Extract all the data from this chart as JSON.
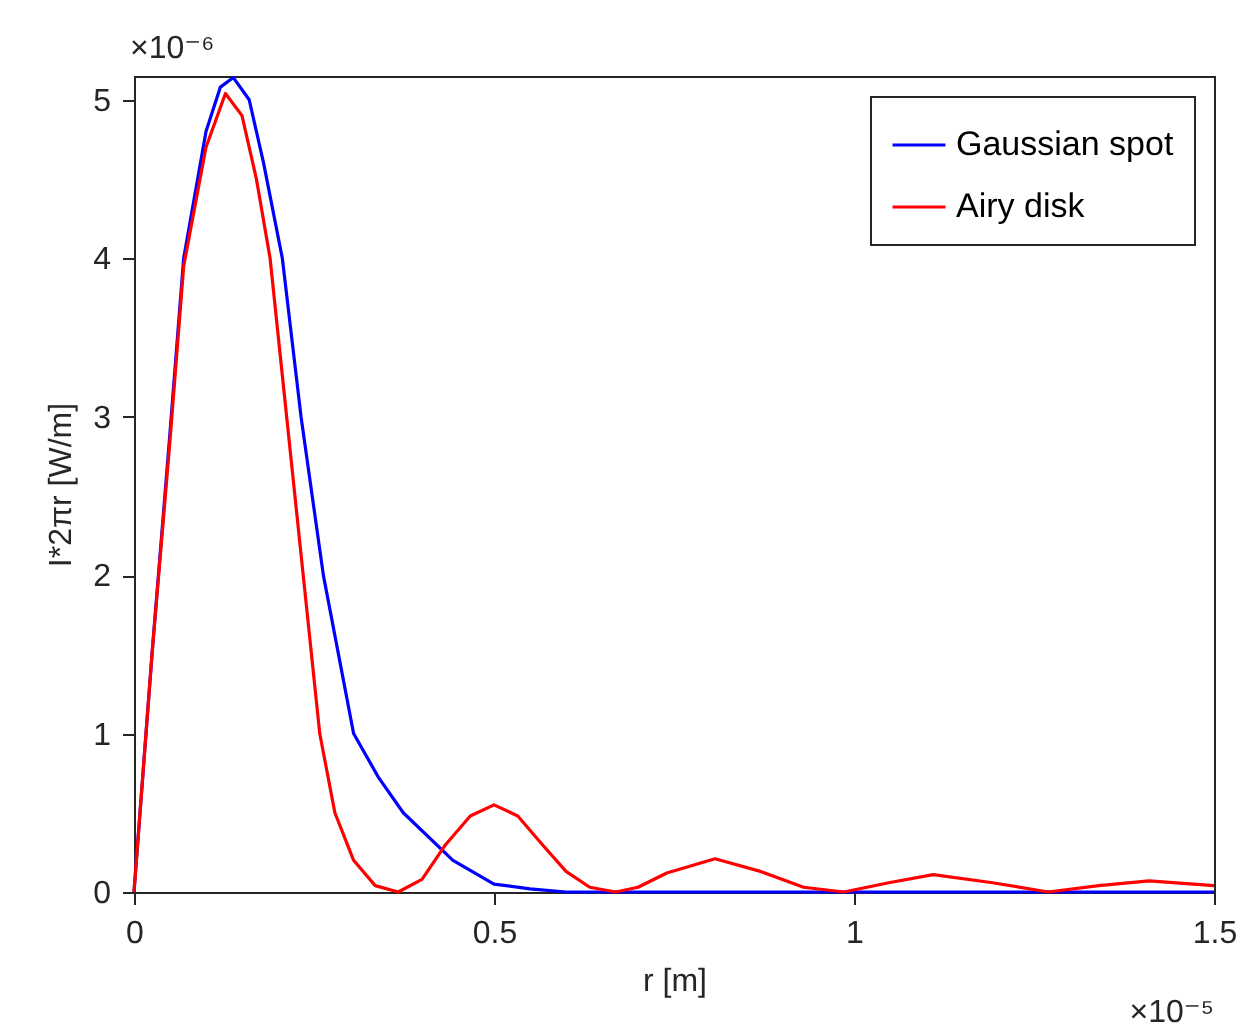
{
  "chart_data": {
    "type": "line",
    "xlabel": "r [m]",
    "ylabel": "I*2πr [W/m]",
    "annotations": [
      "×10⁻⁶",
      "×10⁻⁵"
    ],
    "xlim": [
      0,
      1.5
    ],
    "ylim": [
      0,
      5.15
    ],
    "xticks": [
      0,
      0.5,
      1,
      1.5
    ],
    "yticks": [
      0,
      1,
      2,
      3,
      4,
      5
    ],
    "grid": false,
    "legend": "top right",
    "line_style": "solid",
    "marker": "none",
    "series": [
      {
        "name": "Gaussian spot",
        "color": "#0000ff",
        "x": [
          0,
          0.025,
          0.05,
          0.069,
          0.1,
          0.12,
          0.138,
          0.16,
          0.18,
          0.206,
          0.232,
          0.263,
          0.305,
          0.34,
          0.374,
          0.443,
          0.5,
          0.55,
          0.6,
          1.5
        ],
        "values": [
          0,
          1.5,
          2.9,
          4,
          4.8,
          5.08,
          5.14,
          5.0,
          4.6,
          4,
          3,
          2,
          1,
          0.72,
          0.5,
          0.2,
          0.05,
          0.02,
          0,
          0
        ]
      },
      {
        "name": "Airy disk",
        "color": "#ff0000",
        "x": [
          0,
          0.025,
          0.05,
          0.069,
          0.1,
          0.127,
          0.15,
          0.17,
          0.189,
          0.212,
          0.235,
          0.258,
          0.279,
          0.305,
          0.335,
          0.367,
          0.4,
          0.433,
          0.467,
          0.5,
          0.533,
          0.567,
          0.6,
          0.633,
          0.669,
          0.7,
          0.74,
          0.807,
          0.87,
          0.93,
          0.986,
          1.05,
          1.11,
          1.19,
          1.27,
          1.34,
          1.41,
          1.5
        ],
        "values": [
          0,
          1.5,
          2.85,
          3.95,
          4.7,
          5.04,
          4.9,
          4.5,
          4,
          3,
          2,
          1,
          0.5,
          0.2,
          0.04,
          0,
          0.08,
          0.3,
          0.48,
          0.55,
          0.48,
          0.3,
          0.13,
          0.03,
          0,
          0.03,
          0.12,
          0.21,
          0.13,
          0.03,
          0,
          0.06,
          0.11,
          0.06,
          0,
          0.04,
          0.07,
          0.04
        ]
      }
    ]
  }
}
